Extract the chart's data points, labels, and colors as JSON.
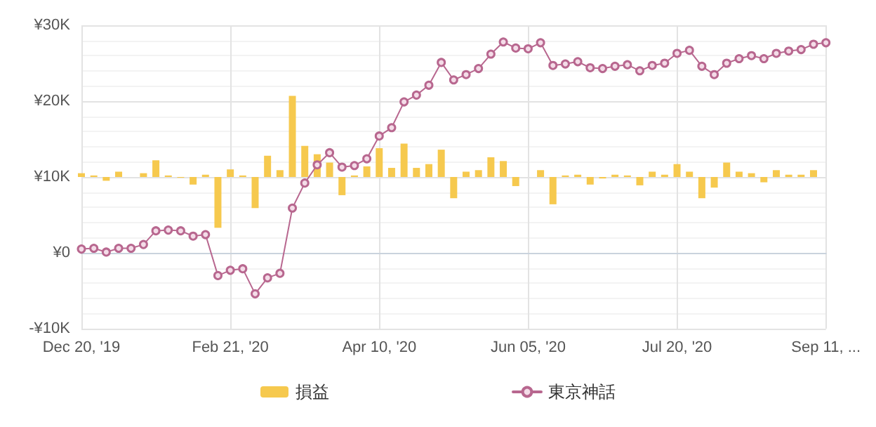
{
  "chart_data": {
    "type": "line",
    "categories": [
      "Dec 20, '19",
      null,
      null,
      null,
      null,
      null,
      null,
      null,
      null,
      null,
      null,
      null,
      "Feb 21, '20",
      null,
      null,
      null,
      null,
      null,
      null,
      null,
      null,
      null,
      null,
      null,
      "Apr 10, '20",
      null,
      null,
      null,
      null,
      null,
      null,
      null,
      null,
      null,
      null,
      null,
      "Jun 05, '20",
      null,
      null,
      null,
      null,
      null,
      null,
      null,
      null,
      null,
      null,
      null,
      "Jul 20, '20",
      null,
      null,
      null,
      null,
      null,
      null,
      null,
      null,
      null,
      null,
      null,
      "Sep 11, ..."
    ],
    "series": [
      {
        "name": "損益",
        "type": "bar",
        "color": "#f6c94e",
        "base": [
          10000,
          10000,
          10000,
          10000,
          null,
          10000,
          10000,
          10000,
          10000,
          10000,
          10000,
          10000,
          10000,
          10000,
          10000,
          10000,
          10000,
          10000,
          10000,
          10000,
          10000,
          10000,
          10000,
          10000,
          10000,
          10000,
          10000,
          10000,
          10000,
          10000,
          10000,
          10000,
          10000,
          10000,
          10000,
          10000,
          null,
          10000,
          10000,
          10000,
          10000,
          10000,
          10000,
          10000,
          10000,
          10000,
          10000,
          10000,
          10000,
          10000,
          10000,
          10000,
          10000,
          10000,
          10000,
          10000,
          10000,
          10000,
          10000,
          10000,
          null
        ],
        "values": [
          500,
          200,
          -500,
          700,
          null,
          500,
          2200,
          200,
          -100,
          -1000,
          300,
          -6700,
          1000,
          200,
          -4100,
          2800,
          900,
          10700,
          4100,
          3000,
          1900,
          -2400,
          200,
          1400,
          3800,
          1200,
          4400,
          1200,
          1700,
          3600,
          -2800,
          700,
          900,
          2600,
          2100,
          -1200,
          null,
          900,
          -3600,
          200,
          300,
          -1000,
          -200,
          300,
          200,
          -1100,
          700,
          300,
          1700,
          700,
          -2800,
          -1400,
          1900,
          700,
          500,
          -700,
          900,
          300,
          300,
          900,
          null
        ]
      },
      {
        "name": "東京神話",
        "color": "#b8678f",
        "values": [
          500,
          600,
          100,
          600,
          600,
          1100,
          2900,
          3000,
          2900,
          2200,
          2400,
          -3000,
          -2300,
          -2100,
          -5400,
          -3300,
          -2700,
          5900,
          9200,
          11600,
          13200,
          11300,
          11500,
          12400,
          15400,
          16500,
          19900,
          20800,
          22100,
          25100,
          22800,
          23500,
          24300,
          26200,
          27800,
          27000,
          26900,
          27700,
          24700,
          24900,
          25200,
          24400,
          24300,
          24600,
          24800,
          24000,
          24700,
          25000,
          26300,
          26700,
          24600,
          23500,
          25000,
          25600,
          26000,
          25600,
          26300,
          26600,
          26800,
          27500,
          27700
        ]
      }
    ],
    "ylim": [
      -10000,
      30000
    ],
    "yticks": [
      {
        "value": -10000,
        "label": "-¥10K"
      },
      {
        "value": 0,
        "label": "¥0"
      },
      {
        "value": 10000,
        "label": "¥10K"
      },
      {
        "value": 20000,
        "label": "¥20K"
      },
      {
        "value": 30000,
        "label": "¥30K"
      }
    ],
    "grid": true,
    "legend": "bottom",
    "marker": "circle",
    "line_style": "solid"
  }
}
